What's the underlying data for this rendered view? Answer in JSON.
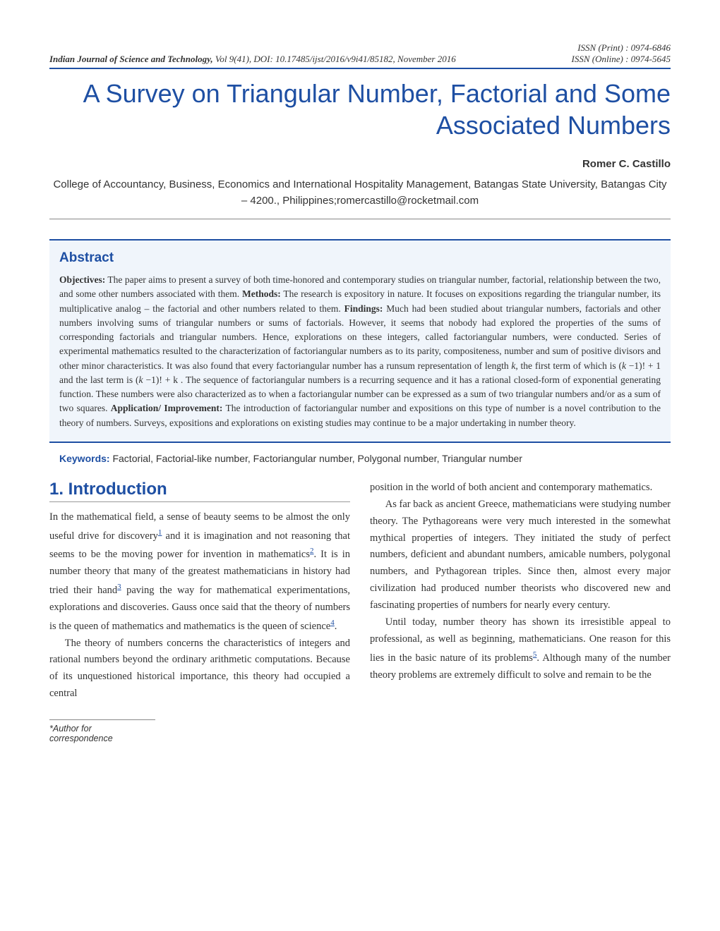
{
  "header": {
    "issn_print": "ISSN (Print) : 0974-6846",
    "issn_online": "ISSN (Online) : 0974-5645",
    "journal": "Indian Journal of Science and Technology,",
    "citation": "Vol 9(41), DOI: 10.17485/ijst/2016/v9i41/85182, November 2016"
  },
  "title": "A Survey on Triangular Number, Factorial and Some Associated Numbers",
  "author": "Romer C. Castillo",
  "affiliation": "College of Accountancy, Business, Economics and International Hospitality Management, Batangas State University, Batangas City – 4200., Philippines;romercastillo@rocketmail.com",
  "abstract": {
    "heading": "Abstract",
    "objectives_label": "Objectives:",
    "objectives": " The paper aims to present a survey of both time-honored and contemporary studies on triangular number, factorial, relationship between the two, and some other numbers associated with them. ",
    "methods_label": "Methods:",
    "methods": " The research is expository in nature. It focuses on expositions regarding the triangular number, its multiplicative analog – the factorial and other numbers related to them. ",
    "findings_label": "Findings:",
    "findings_p1": " Much had been studied about triangular numbers, factorials and other numbers involving sums of triangular numbers or sums of factorials. However, it seems that nobody had explored the properties of the sums of corresponding factorials and triangular numbers. Hence, explorations on these integers, called factoriangular numbers, were conducted. Series of experimental mathematics resulted to the characterization of factoriangular numbers as to its parity, compositeness, number and sum of positive divisors and other minor characteristics. It was also found that every factoriangular number has a runsum representation of length ",
    "k": "k",
    "findings_p2": ", the first term of which is (",
    "km1a": "k",
    "findings_p3": " −1)!  +  1 and the last term is  (",
    "km1b": "k",
    "findings_p4": " −1)!  +  k . The sequence of factoriangular numbers is a recurring sequence and it has a rational closed-form of exponential generating function. These numbers were also characterized as to when a factoriangular number can be expressed as a sum of two triangular numbers and/or as a sum of two squares. ",
    "application_label": "Application/ Improvement:",
    "application": " The introduction of factoriangular number and expositions on this type of number is a novel contribution to the theory of numbers. Surveys, expositions and explorations on existing studies may continue to be a major undertaking in number theory."
  },
  "keywords": {
    "label": "Keywords:",
    "text": " Factorial, Factorial-like number, Factoriangular number, Polygonal number, Triangular number"
  },
  "section1": {
    "heading": "1.  Introduction",
    "col1_p1_a": "In the mathematical field, a sense of beauty seems to be almost the only useful drive for discovery",
    "ref1": "1",
    "col1_p1_b": " and it is imagination and not reasoning that seems to be the moving power for invention in mathematics",
    "ref2": "2",
    "col1_p1_c": ". It is in number theory that many of the greatest mathematicians in history had tried their hand",
    "ref3": "3",
    "col1_p1_d": " paving the way for mathematical experimentations, explorations and discoveries. Gauss once said that the theory of numbers is the queen of mathematics and mathematics is the queen of science",
    "ref4": "4",
    "col1_p1_e": ".",
    "col1_p2": "The theory of numbers concerns the characteristics of integers and rational numbers beyond the ordinary arithmetic computations. Because of its unquestioned historical importance, this theory had occupied a central",
    "col2_p1": "position in the world of both ancient and contemporary mathematics.",
    "col2_p2": "As far back as ancient Greece, mathematicians were studying number theory. The Pythagoreans were very much interested in the somewhat mythical properties of integers. They initiated the study of perfect numbers, deficient and abundant numbers, amicable numbers, polygonal numbers, and Pythagorean triples. Since then, almost every major civilization had produced number theorists who discovered new and fascinating properties of numbers for nearly every century.",
    "col2_p3_a": "Until today, number theory has shown its irresistible appeal to professional, as well as beginning, mathematicians. One reason for this lies in the basic nature of its problems",
    "ref5": "5",
    "col2_p3_b": ". Although many of the number theory problems are extremely difficult to solve and remain to be the"
  },
  "footer": "*Author for correspondence"
}
